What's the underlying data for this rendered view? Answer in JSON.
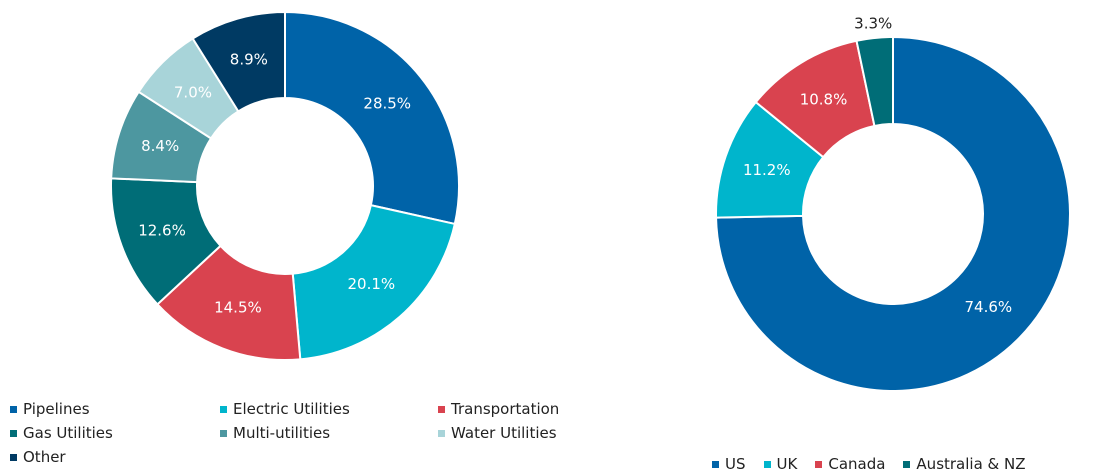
{
  "chart_data": [
    {
      "type": "donut",
      "categories": [
        "Pipelines",
        "Electric Utilities",
        "Transportation",
        "Gas Utilities",
        "Multi-utilities",
        "Water Utilities",
        "Other"
      ],
      "values": [
        28.5,
        20.1,
        14.5,
        12.6,
        8.4,
        7.0,
        8.9
      ],
      "value_labels": [
        "28.5%",
        "20.1%",
        "14.5%",
        "12.6%",
        "8.4%",
        "7.0%",
        "8.9%"
      ],
      "colors": [
        "#0063a8",
        "#00b5cc",
        "#d9434f",
        "#006d77",
        "#4d97a0",
        "#a8d4d9",
        "#003a63"
      ],
      "legend": "bottom"
    },
    {
      "type": "donut",
      "categories": [
        "US",
        "UK",
        "Canada",
        "Australia & NZ"
      ],
      "values": [
        74.6,
        11.2,
        10.8,
        3.3
      ],
      "value_labels": [
        "74.6%",
        "11.2%",
        "10.8%",
        "3.3%"
      ],
      "colors": [
        "#0063a8",
        "#00b5cc",
        "#d9434f",
        "#006d77"
      ],
      "legend": "bottom"
    }
  ]
}
